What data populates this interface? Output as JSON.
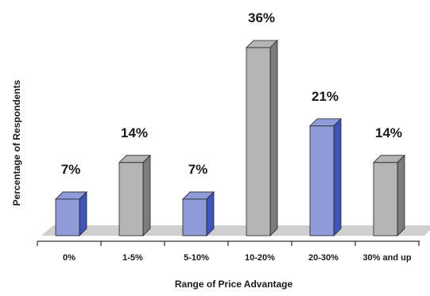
{
  "chart_data": {
    "type": "bar",
    "xlabel": "Range of Price Advantage",
    "ylabel": "Percentage of Respondents",
    "categories": [
      "0%",
      "1-5%",
      "5-10%",
      "10-20%",
      "20-30%",
      "30% and up"
    ],
    "values": [
      7,
      14,
      7,
      36,
      21,
      14
    ],
    "value_labels": [
      "7%",
      "14%",
      "7%",
      "36%",
      "21%",
      "14%"
    ],
    "ylim": [
      0,
      40
    ],
    "grid": false,
    "legend": "none",
    "bar_colors": [
      "#8e9bd8",
      "#b4b4b4",
      "#8e9bd8",
      "#b4b4b4",
      "#8e9bd8",
      "#b4b4b4"
    ],
    "bar_side_colors": [
      "#3f56b8",
      "#7c7c7c",
      "#3f56b8",
      "#7c7c7c",
      "#3f56b8",
      "#7c7c7c"
    ],
    "floor_color": "#cfcfcf"
  }
}
